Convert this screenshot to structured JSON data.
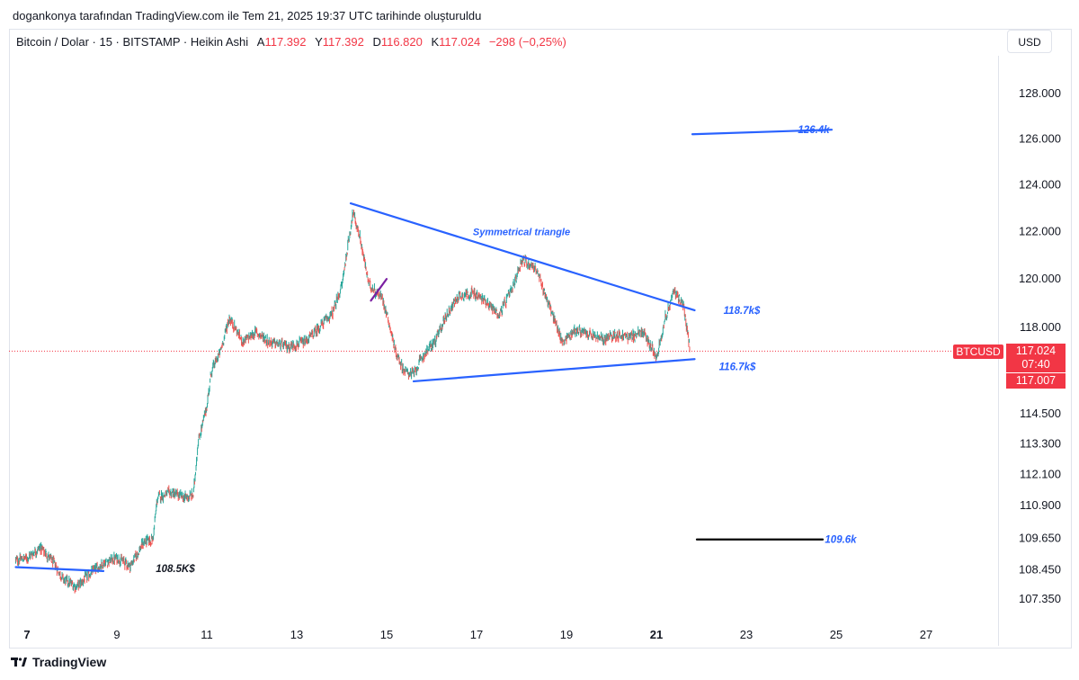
{
  "header": {
    "attribution": "dogankonya tarafından TradingView.com ile Tem 21, 2025 19:37 UTC tarihinde oluşturuldu"
  },
  "symbol": {
    "title": "Bitcoin / Dolar · 15 · BITSTAMP · Heikin Ashi",
    "open_label": "A",
    "open": "117.392",
    "high_label": "Y",
    "high": "117.392",
    "low_label": "D",
    "low": "116.820",
    "close_label": "K",
    "close": "117.024",
    "change": "−298 (−0,25%)"
  },
  "currency": "USD",
  "footer": {
    "brand": "TradingView"
  },
  "badges": {
    "symbol": "BTCUSD",
    "last_price": "117.024",
    "countdown": "07:40",
    "second_price": "117.007"
  },
  "colors": {
    "up": "#26a69a",
    "down": "#ef5350",
    "trendline": "#2962ff",
    "accent_red": "#f23645",
    "black_line": "#000000"
  },
  "chart_data": {
    "type": "candlestick",
    "title": "Bitcoin / Dolar · 15 · BITSTAMP · Heikin Ashi",
    "x_tick_labels": [
      "7",
      "9",
      "11",
      "13",
      "15",
      "17",
      "19",
      "21",
      "23",
      "25",
      "27"
    ],
    "x_tick_days": [
      7,
      9,
      11,
      13,
      15,
      17,
      19,
      21,
      23,
      25,
      27
    ],
    "x_range_days": [
      6.75,
      28.3
    ],
    "y_tick_labels": [
      "128.000",
      "126.000",
      "124.000",
      "122.000",
      "120.000",
      "118.000",
      "114.500",
      "113.300",
      "112.100",
      "110.900",
      "109.650",
      "108.450",
      "107.350"
    ],
    "y_tick_values": [
      128000,
      126000,
      124000,
      122000,
      120000,
      118000,
      114500,
      113300,
      112100,
      110900,
      109650,
      108450,
      107350
    ],
    "y_scale": "log",
    "last_price": 117024,
    "price_path": [
      [
        6.75,
        108800
      ],
      [
        7.0,
        108900
      ],
      [
        7.3,
        109300
      ],
      [
        7.6,
        108700
      ],
      [
        7.8,
        108100
      ],
      [
        8.1,
        107800
      ],
      [
        8.4,
        108300
      ],
      [
        8.7,
        108700
      ],
      [
        9.0,
        108900
      ],
      [
        9.3,
        108600
      ],
      [
        9.6,
        109500
      ],
      [
        9.8,
        109600
      ],
      [
        9.9,
        111200
      ],
      [
        10.2,
        111400
      ],
      [
        10.5,
        111200
      ],
      [
        10.7,
        111300
      ],
      [
        10.8,
        113300
      ],
      [
        11.0,
        114800
      ],
      [
        11.1,
        116200
      ],
      [
        11.3,
        117000
      ],
      [
        11.5,
        118400
      ],
      [
        11.8,
        117400
      ],
      [
        12.1,
        117800
      ],
      [
        12.4,
        117400
      ],
      [
        12.8,
        117200
      ],
      [
        13.2,
        117400
      ],
      [
        13.5,
        118000
      ],
      [
        13.8,
        118600
      ],
      [
        14.0,
        119700
      ],
      [
        14.25,
        122800
      ],
      [
        14.4,
        121800
      ],
      [
        14.6,
        119800
      ],
      [
        14.9,
        119200
      ],
      [
        15.0,
        118600
      ],
      [
        15.2,
        117000
      ],
      [
        15.4,
        116200
      ],
      [
        15.6,
        116100
      ],
      [
        15.8,
        116800
      ],
      [
        16.1,
        117500
      ],
      [
        16.3,
        118400
      ],
      [
        16.6,
        119300
      ],
      [
        16.9,
        119400
      ],
      [
        17.2,
        119100
      ],
      [
        17.5,
        118500
      ],
      [
        17.8,
        119600
      ],
      [
        18.0,
        120800
      ],
      [
        18.3,
        120500
      ],
      [
        18.6,
        119000
      ],
      [
        18.9,
        117400
      ],
      [
        19.2,
        117900
      ],
      [
        19.5,
        117700
      ],
      [
        19.8,
        117500
      ],
      [
        20.1,
        117700
      ],
      [
        20.4,
        117600
      ],
      [
        20.7,
        117800
      ],
      [
        21.0,
        116800
      ],
      [
        21.2,
        118400
      ],
      [
        21.4,
        119500
      ],
      [
        21.6,
        118900
      ],
      [
        21.75,
        117024
      ]
    ],
    "lines": [
      {
        "name": "triangle-upper",
        "color": "#2962ff",
        "points": [
          [
            14.2,
            123200
          ],
          [
            21.85,
            118700
          ]
        ]
      },
      {
        "name": "triangle-lower",
        "color": "#2962ff",
        "points": [
          [
            15.6,
            115800
          ],
          [
            21.85,
            116700
          ]
        ]
      },
      {
        "name": "target-126k",
        "color": "#2962ff",
        "points": [
          [
            21.8,
            126200
          ],
          [
            24.9,
            126400
          ]
        ]
      },
      {
        "name": "target-109k",
        "color": "#000000",
        "points": [
          [
            21.9,
            109600
          ],
          [
            24.7,
            109600
          ]
        ]
      },
      {
        "name": "support-108k",
        "color": "#2962ff",
        "points": [
          [
            6.75,
            108550
          ],
          [
            8.7,
            108400
          ]
        ]
      },
      {
        "name": "pullback-mark",
        "color": "#7b1fa2",
        "points": [
          [
            14.65,
            119100
          ],
          [
            15.0,
            120000
          ]
        ]
      }
    ],
    "annotations": [
      {
        "text": "Symmetrical triangle",
        "x": 18.0,
        "y": 122000,
        "color": "#2962ff"
      },
      {
        "text": "118.7k$",
        "x": 22.9,
        "y": 118700,
        "color": "#2962ff"
      },
      {
        "text": "116.7k$",
        "x": 22.8,
        "y": 116400,
        "color": "#2962ff"
      },
      {
        "text": "126.4k",
        "x": 24.5,
        "y": 126400,
        "color": "#2962ff"
      },
      {
        "text": "109.6k",
        "x": 25.1,
        "y": 109600,
        "color": "#2962ff"
      },
      {
        "text": "108.5K$",
        "x": 10.3,
        "y": 108500,
        "color": "#131722"
      }
    ]
  }
}
